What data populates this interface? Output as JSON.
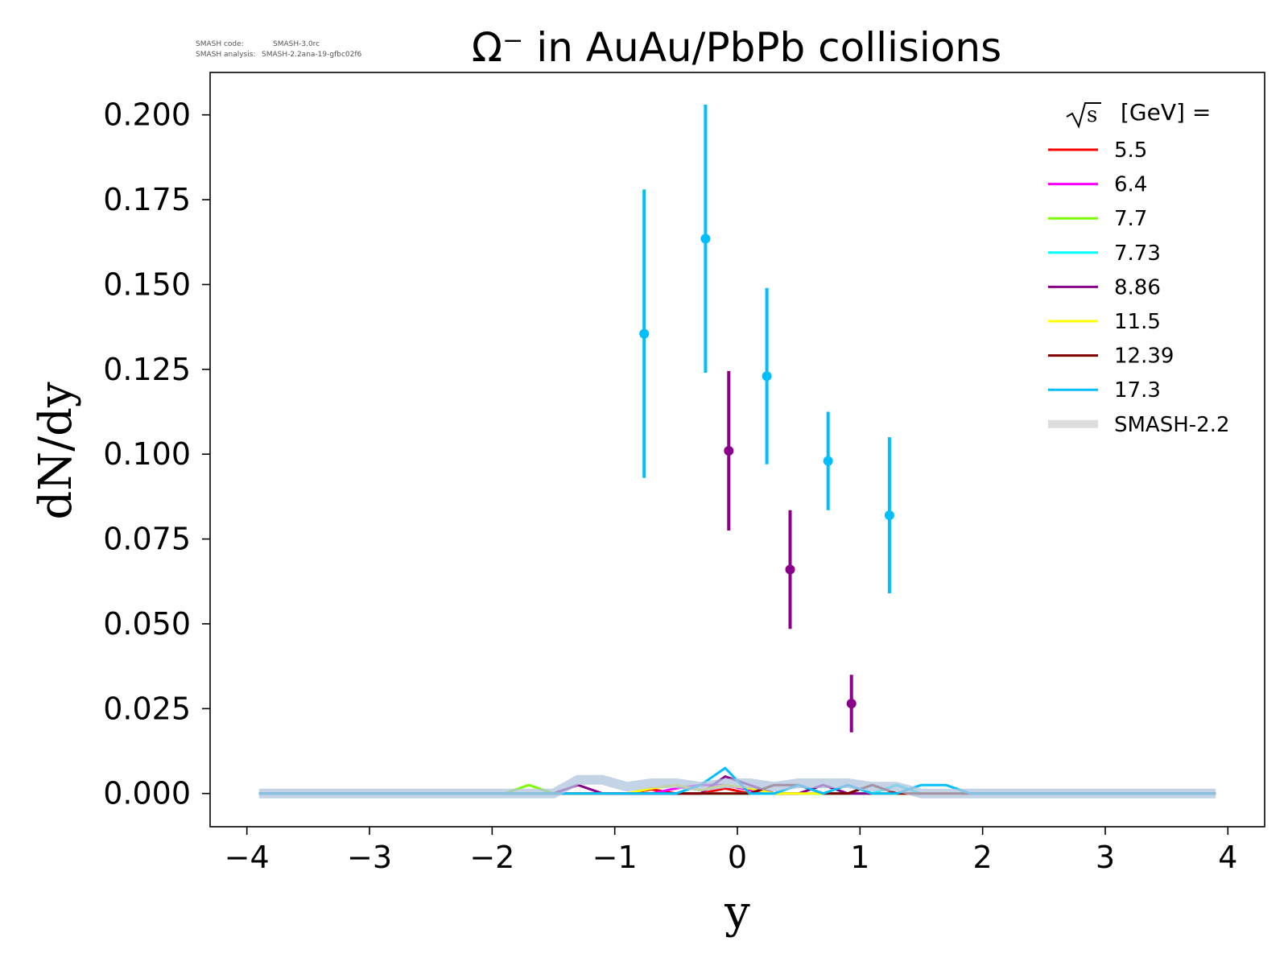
{
  "meta": {
    "code_label": "SMASH code:",
    "code_value": "SMASH-3.0rc",
    "analysis_label": "SMASH analysis:",
    "analysis_value": "SMASH-2.2ana-19-gfbc02f6"
  },
  "chart_data": {
    "type": "line",
    "title": "Ω⁻ in AuAu/PbPb collisions",
    "xlabel": "y",
    "ylabel": "dN/dy",
    "xlim": [
      -4.3,
      4.3
    ],
    "ylim": [
      -0.0098,
      0.2125
    ],
    "xticks": [
      -4,
      -3,
      -2,
      -1,
      0,
      1,
      2,
      3,
      4
    ],
    "xtick_labels": [
      "−4",
      "−3",
      "−2",
      "−1",
      "0",
      "1",
      "2",
      "3",
      "4"
    ],
    "yticks": [
      0.0,
      0.025,
      0.05,
      0.075,
      0.1,
      0.125,
      0.15,
      0.175,
      0.2
    ],
    "ytick_labels": [
      "0.000",
      "0.025",
      "0.050",
      "0.075",
      "0.100",
      "0.125",
      "0.150",
      "0.175",
      "0.200"
    ],
    "grid": false,
    "legend": {
      "placement": "top-right",
      "title_prefix": "s",
      "title_suffix": "[GeV] =",
      "entries": [
        {
          "label": "5.5",
          "color": "#ff0000"
        },
        {
          "label": "6.4",
          "color": "#ff00ff"
        },
        {
          "label": "7.7",
          "color": "#7cfc00"
        },
        {
          "label": "7.73",
          "color": "#00ffff"
        },
        {
          "label": "8.86",
          "color": "#8b008b"
        },
        {
          "label": "11.5",
          "color": "#ffff00"
        },
        {
          "label": "12.39",
          "color": "#800000"
        },
        {
          "label": "17.3",
          "color": "#00bfff"
        },
        {
          "label": "SMASH-2.2",
          "color": "#dddddd"
        }
      ]
    },
    "series": [
      {
        "name": "5.5",
        "color": "#ff0000",
        "x": [
          -3.9,
          -1.9,
          -1.7,
          -1.5,
          -1.3,
          -1.1,
          -0.9,
          -0.7,
          -0.5,
          -0.3,
          -0.1,
          0.1,
          0.3,
          0.5,
          0.7,
          0.9,
          1.1,
          1.3,
          1.5,
          1.7,
          1.9,
          3.9
        ],
        "y": [
          0,
          0,
          0,
          0,
          0,
          0,
          0,
          0.0012,
          0,
          0,
          0.0015,
          0,
          0,
          0,
          0,
          0,
          0,
          0,
          0,
          0,
          0,
          0
        ]
      },
      {
        "name": "6.4",
        "color": "#ff00ff",
        "x": [
          -3.9,
          -1.9,
          -1.7,
          -1.5,
          -1.3,
          -1.1,
          -0.9,
          -0.7,
          -0.5,
          -0.3,
          -0.1,
          0.1,
          0.3,
          0.5,
          0.7,
          0.9,
          1.1,
          1.3,
          1.5,
          1.7,
          1.9,
          3.9
        ],
        "y": [
          0,
          0,
          0,
          0,
          0,
          0,
          0,
          0,
          0.0015,
          0.0025,
          0.0025,
          0.001,
          0,
          0,
          0,
          0,
          0,
          0,
          0,
          0,
          0,
          0
        ]
      },
      {
        "name": "7.7",
        "color": "#7cfc00",
        "x": [
          -3.9,
          -1.9,
          -1.7,
          -1.5,
          -1.3,
          -1.1,
          -0.9,
          -0.7,
          -0.5,
          -0.3,
          -0.1,
          0.1,
          0.3,
          0.5,
          0.7,
          0.9,
          1.1,
          1.3,
          1.5,
          1.7,
          1.9,
          3.9
        ],
        "y": [
          0,
          0,
          0.0025,
          0,
          0,
          0,
          0,
          0,
          0,
          0,
          0,
          0,
          0,
          0,
          0,
          0,
          0,
          0,
          0,
          0,
          0,
          0
        ]
      },
      {
        "name": "7.73",
        "color": "#00ffff",
        "x": [
          -3.9,
          -1.9,
          -1.7,
          -1.5,
          -1.3,
          -1.1,
          -0.9,
          -0.7,
          -0.5,
          -0.3,
          -0.1,
          0.1,
          0.3,
          0.5,
          0.7,
          0.9,
          1.1,
          1.3,
          1.5,
          1.7,
          1.9,
          3.9
        ],
        "y": [
          0,
          0,
          0,
          0,
          0,
          0,
          0,
          0,
          0,
          0,
          0,
          0,
          0,
          0,
          0,
          0,
          0,
          0.0025,
          0,
          0,
          0,
          0
        ]
      },
      {
        "name": "8.86",
        "color": "#8b008b",
        "x": [
          -3.9,
          -1.9,
          -1.7,
          -1.5,
          -1.3,
          -1.1,
          -0.9,
          -0.7,
          -0.5,
          -0.3,
          -0.1,
          0.1,
          0.3,
          0.5,
          0.7,
          0.9,
          1.1,
          1.3,
          1.5,
          1.7,
          1.9,
          3.9
        ],
        "y": [
          0,
          0,
          0,
          0,
          0.0025,
          0,
          0,
          0,
          0,
          0,
          0.005,
          0.0025,
          0,
          0,
          0.0025,
          0,
          0,
          0,
          0,
          0,
          0,
          0
        ]
      },
      {
        "name": "11.5",
        "color": "#ffff00",
        "x": [
          -3.9,
          -1.9,
          -1.7,
          -1.5,
          -1.3,
          -1.1,
          -0.9,
          -0.7,
          -0.5,
          -0.3,
          -0.1,
          0.1,
          0.3,
          0.5,
          0.7,
          0.9,
          1.1,
          1.3,
          1.5,
          1.7,
          1.9,
          3.9
        ],
        "y": [
          0,
          0,
          0,
          0,
          0,
          0,
          0,
          0.0015,
          0.0025,
          0.001,
          0.0025,
          0.0015,
          0,
          0,
          0,
          0.0025,
          0,
          0,
          0,
          0,
          0,
          0
        ]
      },
      {
        "name": "12.39",
        "color": "#800000",
        "x": [
          -3.9,
          -1.9,
          -1.7,
          -1.5,
          -1.3,
          -1.1,
          -0.9,
          -0.7,
          -0.5,
          -0.3,
          -0.1,
          0.1,
          0.3,
          0.5,
          0.7,
          0.9,
          1.1,
          1.3,
          1.5,
          1.7,
          1.9,
          3.9
        ],
        "y": [
          0,
          0,
          0,
          0,
          0,
          0,
          0,
          0,
          0,
          0,
          0,
          0,
          0.0025,
          0.0025,
          0,
          0,
          0.0025,
          0,
          0,
          0,
          0,
          0
        ]
      },
      {
        "name": "17.3",
        "color": "#00bfff",
        "x": [
          -3.9,
          -1.9,
          -1.7,
          -1.5,
          -1.3,
          -1.1,
          -0.9,
          -0.7,
          -0.5,
          -0.3,
          -0.1,
          0.1,
          0.3,
          0.5,
          0.7,
          0.9,
          1.1,
          1.3,
          1.5,
          1.7,
          1.9,
          3.9
        ],
        "y": [
          0,
          0,
          0,
          0,
          0,
          0,
          0,
          0,
          0,
          0.0025,
          0.0075,
          0,
          0,
          0.0025,
          0,
          0.0025,
          0,
          0,
          0.0025,
          0.0025,
          0,
          0
        ]
      },
      {
        "name": "SMASH-2.2",
        "color": "#dddddd",
        "band": true,
        "x": [
          -3.9,
          -1.5,
          -1.3,
          -1.1,
          -0.9,
          -0.7,
          -0.5,
          -0.3,
          -0.1,
          0.1,
          0.3,
          0.5,
          0.7,
          0.9,
          1.1,
          1.3,
          1.5,
          3.9
        ],
        "y": [
          0,
          0,
          0.004,
          0.004,
          0.002,
          0.003,
          0.003,
          0.002,
          0.003,
          0.003,
          0.002,
          0.003,
          0.003,
          0.003,
          0.002,
          0.002,
          0,
          0
        ]
      }
    ],
    "points": [
      {
        "name": "8.86",
        "color": "#8b008b",
        "x": [
          -0.07,
          0.43,
          0.93
        ],
        "y": [
          0.101,
          0.066,
          0.0265
        ],
        "yerr": [
          0.0235,
          0.0175,
          0.0085
        ]
      },
      {
        "name": "17.3",
        "color": "#00bfff",
        "x": [
          -0.76,
          -0.26,
          0.24,
          0.74,
          1.24
        ],
        "y": [
          0.1355,
          0.1635,
          0.123,
          0.098,
          0.082
        ],
        "yerr": [
          0.0425,
          0.0395,
          0.026,
          0.0145,
          0.023
        ]
      }
    ]
  }
}
